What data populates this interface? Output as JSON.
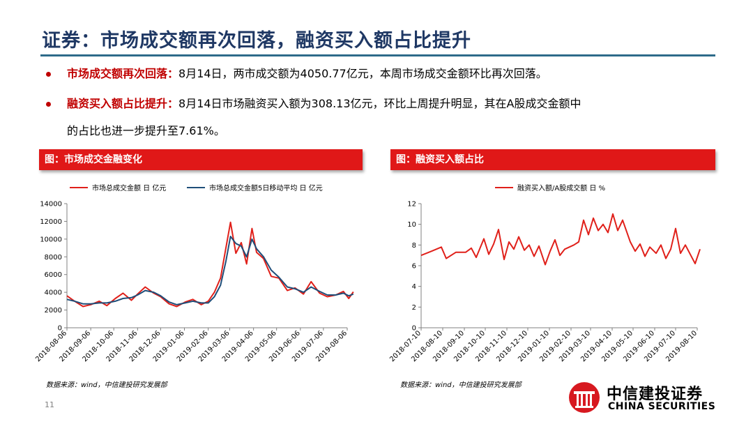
{
  "title": "证券：市场成交额再次回落，融资买入额占比提升",
  "bullets": [
    {
      "label": "市场成交额再次回落：",
      "text": "8月14日，两市成交额为4050.77亿元，本周市场成交金额环比再次回落。"
    },
    {
      "label": "融资买入额占比提升：",
      "text": "8月14日市场融资买入额为308.13亿元，环比上周提升明显，其在A股成交金额中",
      "continuation": "的占比也进一步提升至7.61%。"
    }
  ],
  "charts": {
    "left": {
      "header": "图：市场成交金融变化",
      "source": "数据来源：wind，中信建投研究发展部"
    },
    "right": {
      "header": "图：融资买入额占比",
      "source": "数据来源：wind，中信建投研究发展部"
    }
  },
  "page_number": "11",
  "logo": {
    "cn": "中信建投证券",
    "en": "CHINA SECURITIES"
  },
  "colors": {
    "title": "#1f3864",
    "rule": "#2e6b8a",
    "accent_red": "#c00000",
    "header_red": "#e01818",
    "series_red": "#e0201a",
    "series_blue": "#1f4e79"
  },
  "chart_data": [
    {
      "type": "line",
      "title": "",
      "xlabel": "",
      "ylabel": "",
      "ylim": [
        0,
        14000
      ],
      "yticks": [
        0,
        2000,
        4000,
        6000,
        8000,
        10000,
        12000,
        14000
      ],
      "xticks": [
        "2018-08-06",
        "2018-09-06",
        "2018-10-06",
        "2018-11-06",
        "2018-12-06",
        "2019-01-06",
        "2019-02-06",
        "2019-03-06",
        "2019-04-06",
        "2019-05-06",
        "2019-06-06",
        "2019-07-06",
        "2019-08-06"
      ],
      "legend": "top",
      "series": [
        {
          "name": "市场总成交金额 日 亿元",
          "color": "#e0201a",
          "x": [
            "2018-08-06",
            "2018-08-16",
            "2018-08-27",
            "2018-09-06",
            "2018-09-17",
            "2018-09-27",
            "2018-10-08",
            "2018-10-18",
            "2018-10-29",
            "2018-11-06",
            "2018-11-16",
            "2018-11-27",
            "2018-12-06",
            "2018-12-17",
            "2018-12-27",
            "2019-01-07",
            "2019-01-17",
            "2019-01-28",
            "2019-02-06",
            "2019-02-14",
            "2019-02-22",
            "2019-03-01",
            "2019-03-07",
            "2019-03-14",
            "2019-03-21",
            "2019-03-28",
            "2019-04-04",
            "2019-04-10",
            "2019-04-19",
            "2019-04-29",
            "2019-05-09",
            "2019-05-20",
            "2019-05-30",
            "2019-06-10",
            "2019-06-20",
            "2019-07-01",
            "2019-07-11",
            "2019-07-22",
            "2019-08-01",
            "2019-08-08",
            "2019-08-14"
          ],
          "values": [
            3600,
            3000,
            2400,
            2600,
            3000,
            2500,
            3300,
            3900,
            3100,
            3800,
            4600,
            3900,
            3500,
            2700,
            2400,
            2900,
            3200,
            2600,
            3000,
            4000,
            5600,
            9000,
            11900,
            8400,
            9600,
            7200,
            11200,
            8500,
            7800,
            5800,
            5600,
            4200,
            4500,
            3800,
            5200,
            3900,
            3500,
            3700,
            4100,
            3300,
            4050
          ]
        },
        {
          "name": "市场总成交金额5日移动平均 日 亿元",
          "color": "#1f4e79",
          "x": [
            "2018-08-06",
            "2018-08-16",
            "2018-08-27",
            "2018-09-06",
            "2018-09-17",
            "2018-09-27",
            "2018-10-08",
            "2018-10-18",
            "2018-10-29",
            "2018-11-06",
            "2018-11-16",
            "2018-11-27",
            "2018-12-06",
            "2018-12-17",
            "2018-12-27",
            "2019-01-07",
            "2019-01-17",
            "2019-01-28",
            "2019-02-06",
            "2019-02-14",
            "2019-02-22",
            "2019-03-01",
            "2019-03-07",
            "2019-03-14",
            "2019-03-21",
            "2019-03-28",
            "2019-04-04",
            "2019-04-10",
            "2019-04-19",
            "2019-04-29",
            "2019-05-09",
            "2019-05-20",
            "2019-05-30",
            "2019-06-10",
            "2019-06-20",
            "2019-07-01",
            "2019-07-11",
            "2019-07-22",
            "2019-08-01",
            "2019-08-08",
            "2019-08-14"
          ],
          "values": [
            3200,
            3000,
            2700,
            2700,
            2800,
            2800,
            3000,
            3300,
            3400,
            3700,
            4200,
            4000,
            3600,
            2900,
            2600,
            2800,
            3000,
            2800,
            2800,
            3500,
            4800,
            7500,
            10300,
            9500,
            9200,
            8000,
            10000,
            8900,
            8000,
            6500,
            5700,
            4600,
            4400,
            4000,
            4600,
            4100,
            3700,
            3700,
            3900,
            3600,
            3800
          ]
        }
      ]
    },
    {
      "type": "line",
      "title": "",
      "xlabel": "",
      "ylabel": "",
      "ylim": [
        0,
        12
      ],
      "yticks": [
        0,
        2,
        4,
        6,
        8,
        10,
        12
      ],
      "xticks": [
        "2018-07-10",
        "2018-08-10",
        "2018-09-10",
        "2018-10-10",
        "2018-11-10",
        "2018-12-10",
        "2019-01-10",
        "2019-02-10",
        "2019-03-10",
        "2019-04-10",
        "2019-05-10",
        "2019-06-10",
        "2019-07-10",
        "2019-08-10"
      ],
      "legend": "top",
      "series": [
        {
          "name": "融资买入额/A股成交额 日 %",
          "color": "#e0201a",
          "x": [
            "2018-07-10",
            "2018-07-25",
            "2018-08-08",
            "2018-08-15",
            "2018-08-29",
            "2018-09-12",
            "2018-09-20",
            "2018-09-27",
            "2018-10-08",
            "2018-10-15",
            "2018-10-22",
            "2018-10-29",
            "2018-11-06",
            "2018-11-13",
            "2018-11-20",
            "2018-11-27",
            "2018-12-05",
            "2018-12-12",
            "2018-12-19",
            "2018-12-26",
            "2019-01-04",
            "2019-01-11",
            "2019-01-18",
            "2019-01-25",
            "2019-02-01",
            "2019-02-14",
            "2019-02-21",
            "2019-02-28",
            "2019-03-07",
            "2019-03-14",
            "2019-03-21",
            "2019-03-28",
            "2019-04-04",
            "2019-04-11",
            "2019-04-18",
            "2019-04-25",
            "2019-05-06",
            "2019-05-13",
            "2019-05-20",
            "2019-05-27",
            "2019-06-03",
            "2019-06-12",
            "2019-06-19",
            "2019-06-26",
            "2019-07-03",
            "2019-07-10",
            "2019-07-17",
            "2019-07-24",
            "2019-07-31",
            "2019-08-07",
            "2019-08-14"
          ],
          "values": [
            7.0,
            7.4,
            7.8,
            6.7,
            7.3,
            7.3,
            7.7,
            6.8,
            8.6,
            7.1,
            8.1,
            9.5,
            6.6,
            8.3,
            7.6,
            8.8,
            7.5,
            8.0,
            6.9,
            7.9,
            6.1,
            7.4,
            8.5,
            7.0,
            7.6,
            8.0,
            8.3,
            10.4,
            9.0,
            10.6,
            9.4,
            10.0,
            9.2,
            11.0,
            9.4,
            10.4,
            8.3,
            7.4,
            8.1,
            6.9,
            7.8,
            7.2,
            8.0,
            6.7,
            7.6,
            9.6,
            7.2,
            8.0,
            7.1,
            6.2,
            7.6
          ]
        }
      ]
    }
  ]
}
